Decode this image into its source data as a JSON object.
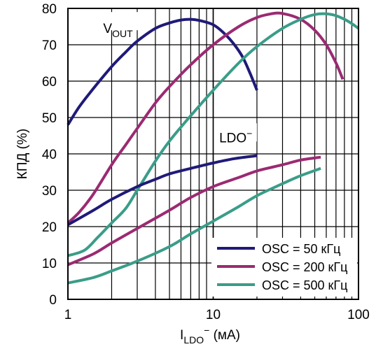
{
  "chart_data": {
    "type": "line",
    "title": "",
    "xlabel": {
      "main": "I",
      "sub": "LDO",
      "sup": "−",
      "rest": " (мА)"
    },
    "ylabel": "КПД (%)",
    "xscale": "log",
    "xlim": [
      1,
      100
    ],
    "ylim": [
      0,
      80
    ],
    "x_ticks": [
      1,
      10,
      100
    ],
    "x_tick_labels": [
      "1",
      "10",
      "100"
    ],
    "y_ticks": [
      0,
      10,
      20,
      30,
      40,
      50,
      60,
      70,
      80
    ],
    "y_tick_labels": [
      "0",
      "10",
      "20",
      "30",
      "40",
      "50",
      "60",
      "70",
      "80"
    ],
    "grid": true,
    "legend_position": "bottom-right",
    "annotations": [
      {
        "id": "vout",
        "main": "V",
        "sub": "OUT",
        "sup": ""
      },
      {
        "id": "ldo",
        "main": "LDO",
        "sub": "",
        "sup": "−"
      }
    ],
    "series": [
      {
        "name": "OSC = 50 кГц",
        "color": "#1f1a78",
        "group": "VOUT",
        "points": [
          [
            1.0,
            48
          ],
          [
            1.2,
            53
          ],
          [
            1.5,
            58
          ],
          [
            2.0,
            64
          ],
          [
            2.5,
            68
          ],
          [
            3.0,
            71
          ],
          [
            4.0,
            74.5
          ],
          [
            5.0,
            76
          ],
          [
            6.0,
            76.8
          ],
          [
            7.0,
            77
          ],
          [
            8.0,
            76.7
          ],
          [
            10,
            75.5
          ],
          [
            12,
            73
          ],
          [
            14,
            70
          ],
          [
            16,
            66.5
          ],
          [
            18,
            62
          ],
          [
            20,
            57.5
          ]
        ]
      },
      {
        "name": "OSC = 200 кГц",
        "color": "#9b2a72",
        "group": "VOUT",
        "points": [
          [
            1.0,
            21
          ],
          [
            1.2,
            24
          ],
          [
            1.5,
            29
          ],
          [
            2.0,
            37
          ],
          [
            2.5,
            42.5
          ],
          [
            3.0,
            47
          ],
          [
            4.0,
            54
          ],
          [
            5.0,
            58.5
          ],
          [
            7.0,
            64.5
          ],
          [
            10,
            70
          ],
          [
            15,
            75
          ],
          [
            20,
            77.5
          ],
          [
            25,
            78.5
          ],
          [
            30,
            78.6
          ],
          [
            40,
            77
          ],
          [
            50,
            74
          ],
          [
            60,
            70
          ],
          [
            70,
            65
          ],
          [
            78,
            60.5
          ]
        ]
      },
      {
        "name": "OSC = 500 кГц",
        "color": "#3a9d88",
        "group": "VOUT",
        "points": [
          [
            1.0,
            12
          ],
          [
            1.3,
            13.5
          ],
          [
            1.6,
            17
          ],
          [
            2.0,
            21
          ],
          [
            2.5,
            25
          ],
          [
            3.0,
            30
          ],
          [
            4.0,
            38
          ],
          [
            5.0,
            43.5
          ],
          [
            7.0,
            50.5
          ],
          [
            10,
            57.5
          ],
          [
            15,
            65
          ],
          [
            20,
            69.5
          ],
          [
            30,
            74.5
          ],
          [
            40,
            77
          ],
          [
            50,
            78.3
          ],
          [
            60,
            78.5
          ],
          [
            70,
            78
          ],
          [
            80,
            77
          ],
          [
            90,
            75.8
          ],
          [
            100,
            74.5
          ]
        ]
      },
      {
        "name": "OSC = 50 кГц",
        "color": "#1f1a78",
        "group": "LDO",
        "points": [
          [
            1.0,
            20.5
          ],
          [
            1.5,
            24.5
          ],
          [
            2.0,
            27.5
          ],
          [
            3.0,
            31
          ],
          [
            4.0,
            33
          ],
          [
            5.0,
            34.5
          ],
          [
            7.0,
            36
          ],
          [
            10,
            37.5
          ],
          [
            14,
            38.7
          ],
          [
            20,
            39.5
          ]
        ]
      },
      {
        "name": "OSC = 200 кГц",
        "color": "#9b2a72",
        "group": "LDO",
        "points": [
          [
            1.0,
            9.5
          ],
          [
            1.5,
            12.5
          ],
          [
            2.0,
            15.5
          ],
          [
            3.0,
            19.5
          ],
          [
            5.0,
            24.5
          ],
          [
            7.0,
            28
          ],
          [
            10,
            31
          ],
          [
            15,
            33.5
          ],
          [
            20,
            35.3
          ],
          [
            30,
            37
          ],
          [
            40,
            38.3
          ],
          [
            55,
            39.1
          ]
        ]
      },
      {
        "name": "OSC = 500 кГц",
        "color": "#3a9d88",
        "group": "LDO",
        "points": [
          [
            1.0,
            4.5
          ],
          [
            1.5,
            6
          ],
          [
            2.0,
            7.8
          ],
          [
            3.0,
            10.5
          ],
          [
            5.0,
            14.5
          ],
          [
            7.0,
            18
          ],
          [
            10,
            21.5
          ],
          [
            15,
            25.5
          ],
          [
            20,
            28.5
          ],
          [
            30,
            31.8
          ],
          [
            40,
            34
          ],
          [
            55,
            36
          ]
        ]
      }
    ],
    "legend": [
      {
        "label": "OSC = 50 кГц",
        "color": "#1f1a78"
      },
      {
        "label": "OSC = 200 кГц",
        "color": "#9b2a72"
      },
      {
        "label": "OSC = 500 кГц",
        "color": "#3a9d88"
      }
    ]
  }
}
